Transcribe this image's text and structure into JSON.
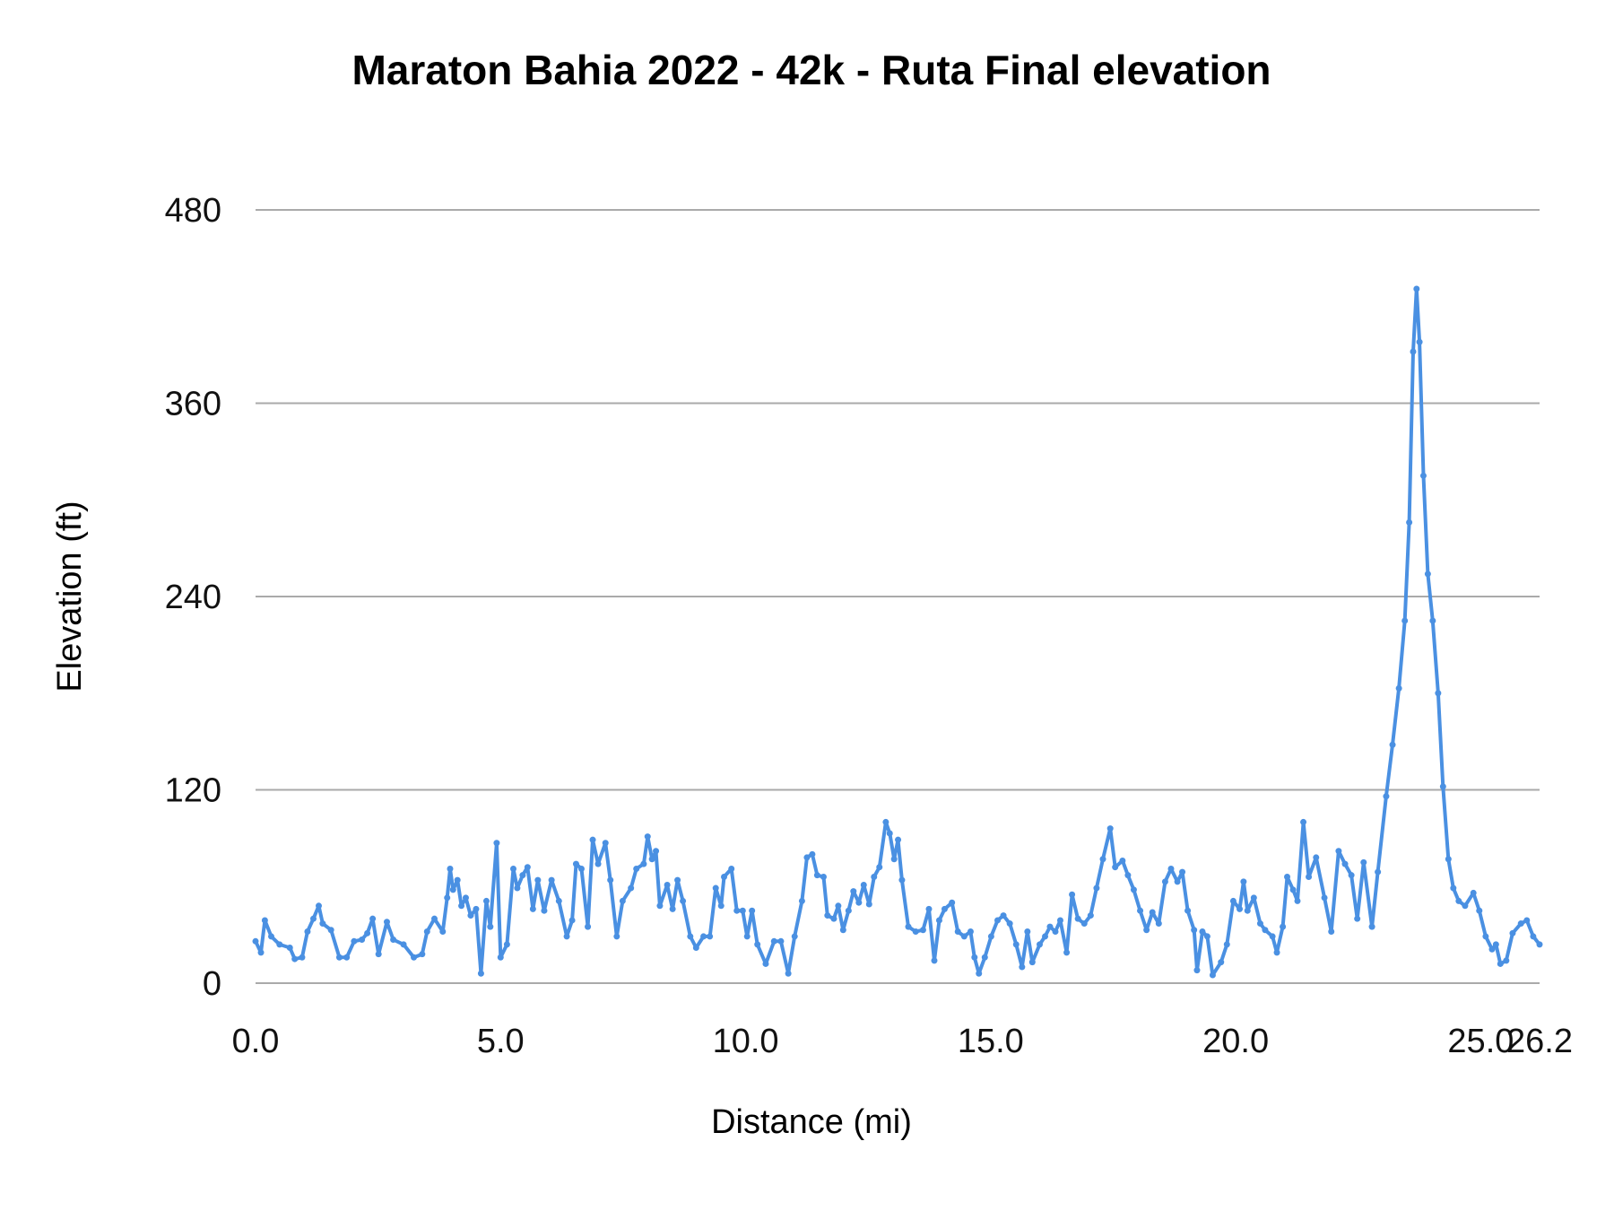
{
  "chart_data": {
    "type": "line",
    "title": "Maraton Bahia 2022 - 42k - Ruta Final elevation",
    "xlabel": "Distance (mi)",
    "ylabel": "Elevation (ft)",
    "xlim": [
      0,
      26.2
    ],
    "ylim": [
      0,
      480
    ],
    "xticks": [
      "0.0",
      "5.0",
      "10.0",
      "15.0",
      "20.0",
      "25.0",
      "26.2"
    ],
    "xtick_values": [
      0,
      5,
      10,
      15,
      20,
      25,
      26.2
    ],
    "yticks": [
      "0",
      "120",
      "240",
      "360",
      "480"
    ],
    "ytick_values": [
      0,
      120,
      240,
      360,
      480
    ],
    "grid": "horizontal",
    "markers": true,
    "color": "#4a90e2",
    "grid_color": "#aaaaaa",
    "series": [
      {
        "x": [
          0.0,
          0.11,
          0.19,
          0.32,
          0.49,
          0.7,
          0.8,
          0.95,
          1.06,
          1.18,
          1.29,
          1.37,
          1.54,
          1.71,
          1.86,
          2.01,
          2.17,
          2.28,
          2.39,
          2.51,
          2.68,
          2.81,
          3.02,
          3.23,
          3.4,
          3.5,
          3.65,
          3.82,
          3.91,
          3.97,
          4.03,
          4.12,
          4.2,
          4.29,
          4.39,
          4.5,
          4.6,
          4.71,
          4.79,
          4.92,
          5.0,
          5.13,
          5.26,
          5.34,
          5.45,
          5.55,
          5.66,
          5.76,
          5.89,
          6.04,
          6.19,
          6.35,
          6.46,
          6.54,
          6.65,
          6.78,
          6.88,
          6.99,
          7.14,
          7.24,
          7.37,
          7.49,
          7.66,
          7.77,
          7.92,
          8.0,
          8.09,
          8.17,
          8.25,
          8.4,
          8.51,
          8.61,
          8.72,
          8.87,
          8.99,
          9.14,
          9.27,
          9.39,
          9.5,
          9.56,
          9.71,
          9.82,
          9.94,
          10.03,
          10.13,
          10.24,
          10.41,
          10.58,
          10.72,
          10.87,
          11.0,
          11.15,
          11.25,
          11.36,
          11.46,
          11.59,
          11.67,
          11.8,
          11.89,
          11.99,
          12.1,
          12.2,
          12.31,
          12.41,
          12.52,
          12.62,
          12.73,
          12.86,
          12.94,
          13.03,
          13.11,
          13.19,
          13.32,
          13.47,
          13.62,
          13.74,
          13.85,
          13.95,
          14.06,
          14.21,
          14.33,
          14.46,
          14.59,
          14.67,
          14.76,
          14.88,
          15.01,
          15.14,
          15.26,
          15.39,
          15.52,
          15.64,
          15.75,
          15.85,
          16.0,
          16.11,
          16.21,
          16.32,
          16.42,
          16.55,
          16.66,
          16.78,
          16.91,
          17.04,
          17.16,
          17.29,
          17.44,
          17.54,
          17.69,
          17.8,
          17.92,
          18.05,
          18.18,
          18.3,
          18.43,
          18.56,
          18.68,
          18.81,
          18.91,
          19.02,
          19.15,
          19.21,
          19.32,
          19.42,
          19.53,
          19.7,
          19.82,
          19.95,
          20.08,
          20.16,
          20.24,
          20.37,
          20.5,
          20.6,
          20.75,
          20.84,
          20.96,
          21.05,
          21.17,
          21.26,
          21.38,
          21.49,
          21.64,
          21.81,
          21.95,
          22.1,
          22.23,
          22.36,
          22.48,
          22.61,
          22.78,
          22.9,
          23.07,
          23.2,
          23.33,
          23.45,
          23.54,
          23.62,
          23.69,
          23.75,
          23.83,
          23.92,
          24.02,
          24.13,
          24.23,
          24.34,
          24.44,
          24.55,
          24.68,
          24.85,
          24.97,
          25.1,
          25.23,
          25.31,
          25.4,
          25.52,
          25.65,
          25.82,
          25.94,
          26.07,
          26.2
        ],
        "y": [
          26,
          19,
          39,
          29,
          24,
          22,
          15,
          16,
          32,
          40,
          48,
          37,
          33,
          16,
          16,
          26,
          27,
          31,
          40,
          18,
          38,
          27,
          24,
          16,
          18,
          32,
          40,
          32,
          53,
          71,
          58,
          64,
          48,
          53,
          42,
          46,
          6,
          51,
          35,
          87,
          16,
          24,
          71,
          59,
          67,
          72,
          46,
          64,
          45,
          64,
          51,
          29,
          39,
          74,
          71,
          35,
          89,
          74,
          87,
          64,
          29,
          51,
          59,
          71,
          74,
          91,
          77,
          82,
          48,
          61,
          46,
          64,
          51,
          29,
          22,
          29,
          29,
          59,
          48,
          66,
          71,
          45,
          45,
          29,
          45,
          24,
          12,
          26,
          26,
          6,
          29,
          51,
          78,
          80,
          67,
          66,
          42,
          40,
          48,
          33,
          45,
          57,
          50,
          61,
          49,
          66,
          72,
          100,
          93,
          77,
          89,
          64,
          35,
          32,
          33,
          46,
          14,
          39,
          46,
          50,
          32,
          29,
          32,
          16,
          6,
          16,
          29,
          39,
          42,
          37,
          24,
          10,
          32,
          13,
          24,
          29,
          35,
          32,
          39,
          19,
          55,
          40,
          37,
          42,
          59,
          77,
          96,
          72,
          76,
          67,
          58,
          45,
          33,
          44,
          37,
          63,
          71,
          63,
          69,
          45,
          33,
          8,
          32,
          29,
          5,
          13,
          24,
          51,
          46,
          63,
          45,
          53,
          37,
          33,
          29,
          19,
          35,
          66,
          58,
          51,
          100,
          66,
          78,
          53,
          32,
          82,
          74,
          67,
          40,
          75,
          35,
          69,
          116,
          148,
          183,
          225,
          286,
          392,
          431,
          398,
          315,
          254,
          225,
          180,
          122,
          77,
          59,
          51,
          48,
          56,
          45,
          29,
          21,
          24,
          12,
          14,
          31,
          37,
          39,
          29,
          24
        ]
      }
    ]
  }
}
